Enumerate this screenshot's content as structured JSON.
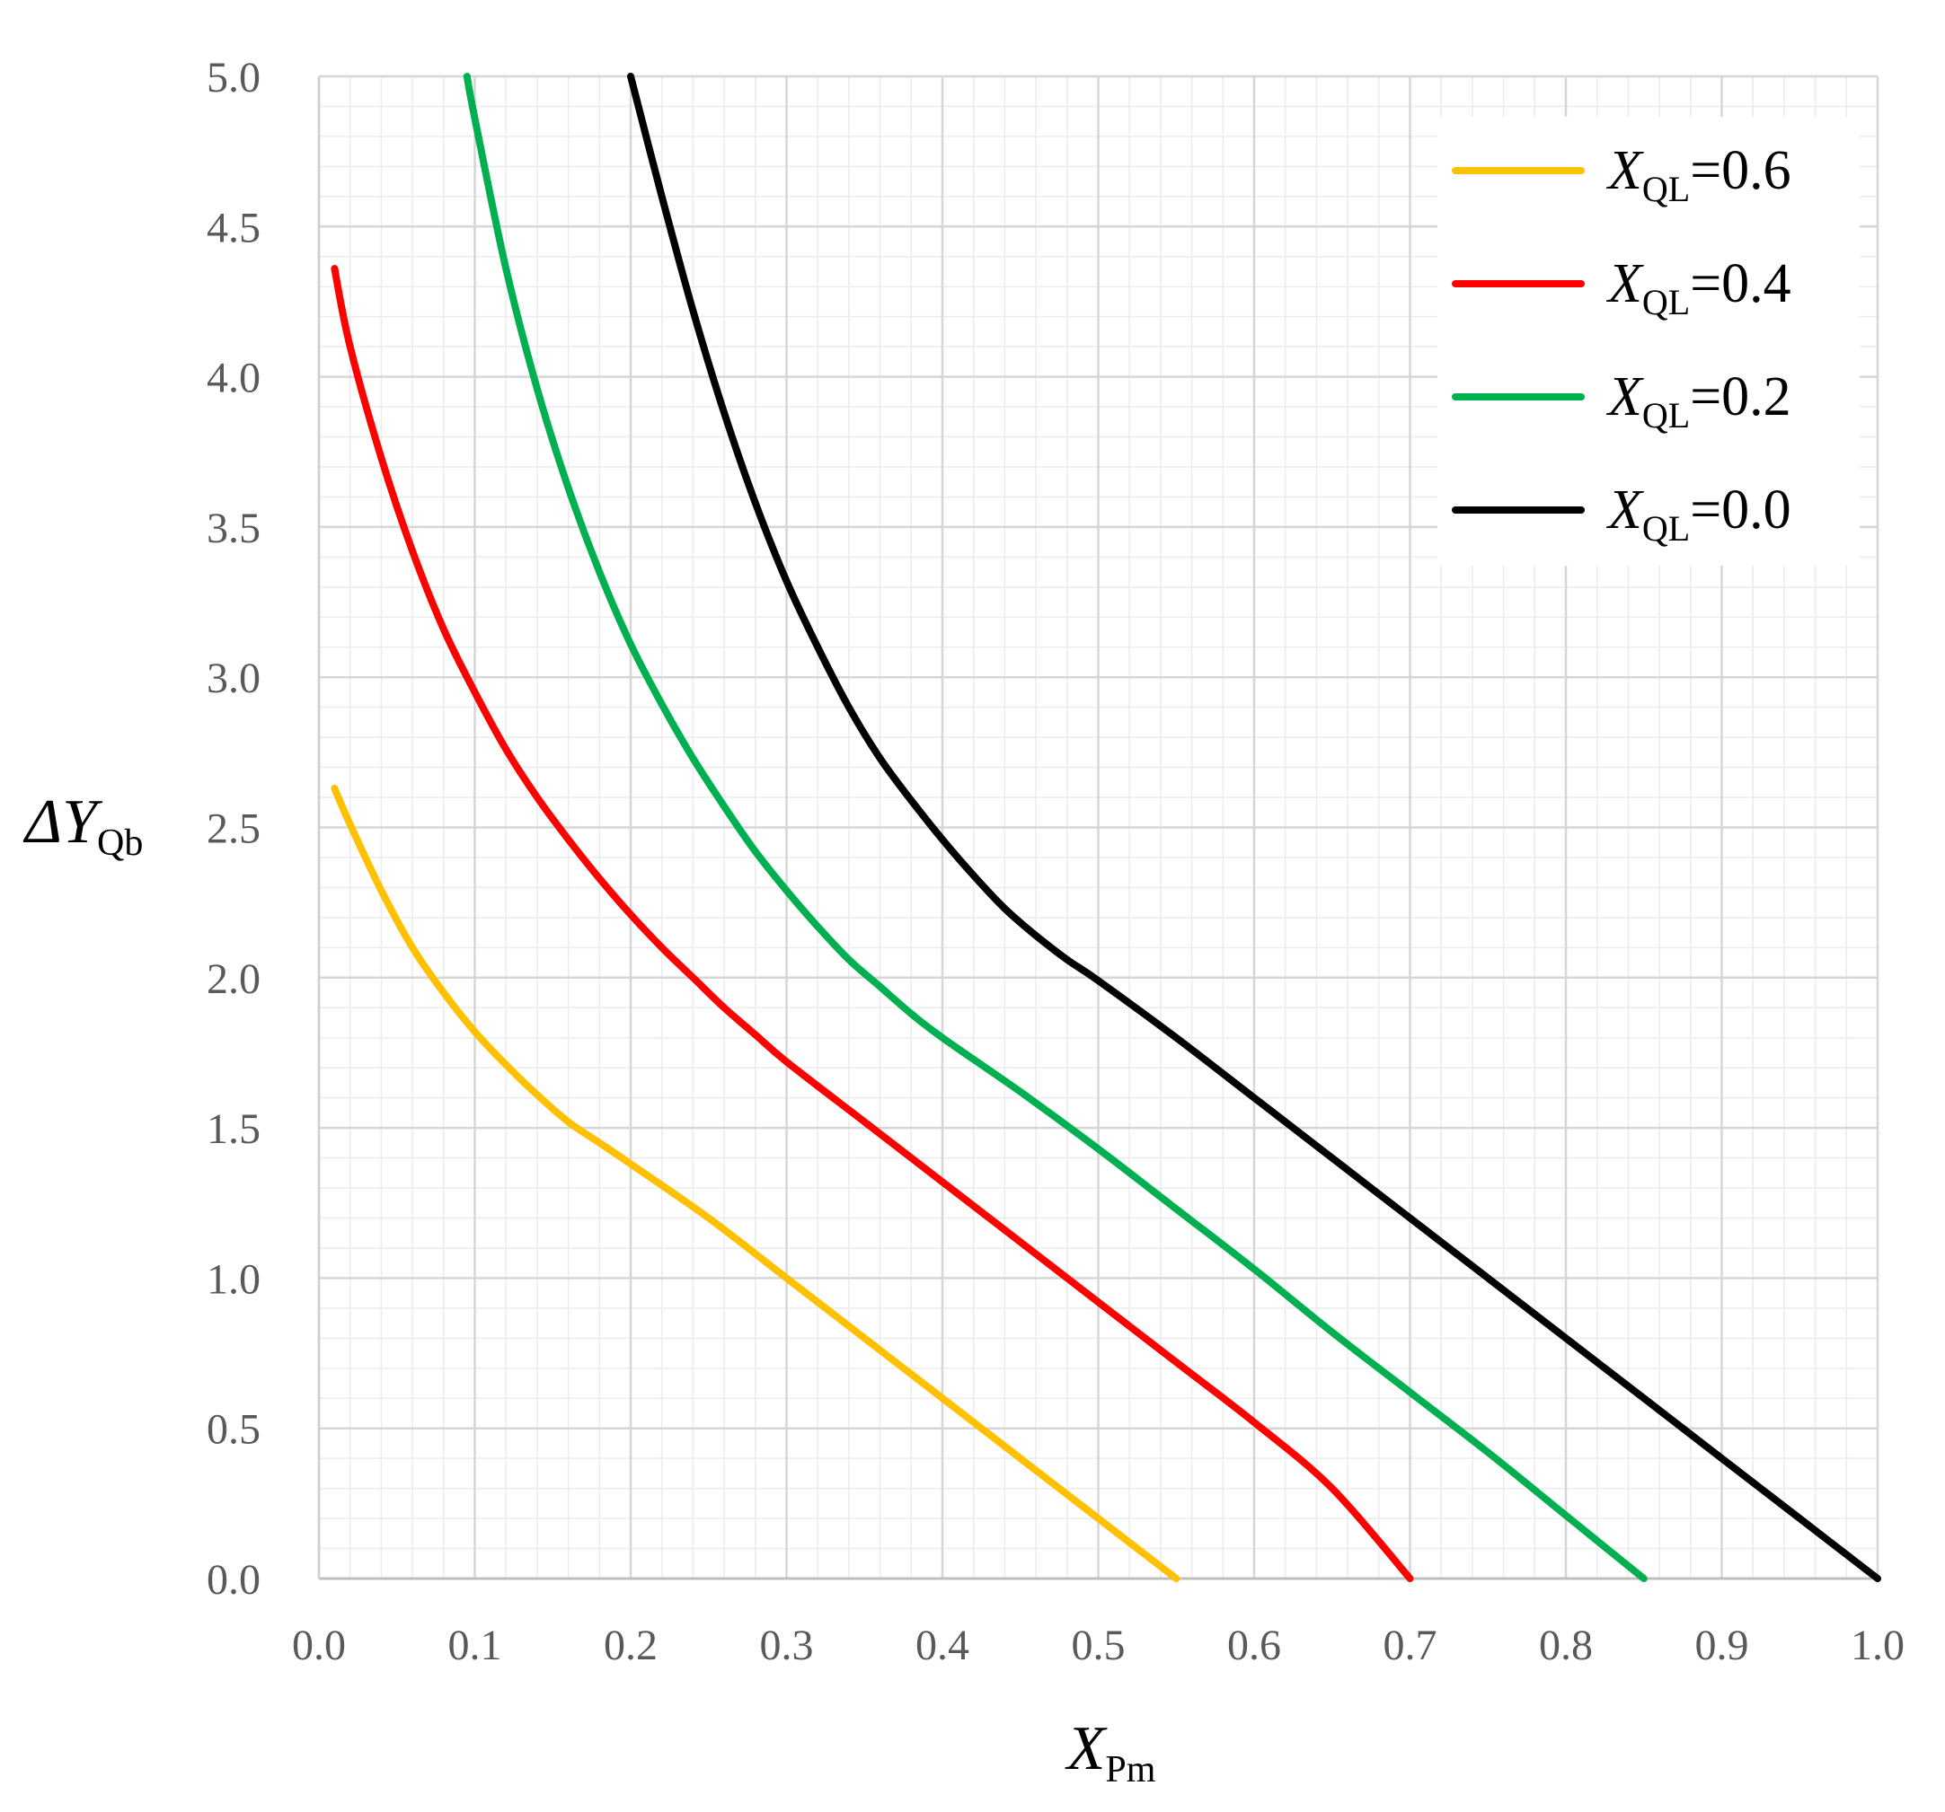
{
  "chart_data": {
    "type": "line",
    "xlabel": {
      "main": "X",
      "sub": "Pm"
    },
    "ylabel": {
      "prefix": "ΔY",
      "sub": "Qb"
    },
    "xlim": [
      0.0,
      1.0
    ],
    "ylim": [
      0.0,
      5.0
    ],
    "xticks": [
      "0.0",
      "0.1",
      "0.2",
      "0.3",
      "0.4",
      "0.5",
      "0.6",
      "0.7",
      "0.8",
      "0.9",
      "1.0"
    ],
    "yticks": [
      "0.0",
      "0.5",
      "1.0",
      "1.5",
      "2.0",
      "2.5",
      "3.0",
      "3.5",
      "4.0",
      "4.5",
      "5.0"
    ],
    "grid": {
      "major": true,
      "minor": true,
      "minor_x_step": 0.02,
      "minor_y_step": 0.1
    },
    "legend": {
      "position": "top-right",
      "var": "X",
      "sub": "QL"
    },
    "series": [
      {
        "name": "=0.6",
        "color": "#ffc000",
        "points": [
          [
            0.01,
            2.63
          ],
          [
            0.02,
            2.51
          ],
          [
            0.04,
            2.29
          ],
          [
            0.06,
            2.1
          ],
          [
            0.08,
            1.95
          ],
          [
            0.1,
            1.82
          ],
          [
            0.12,
            1.71
          ],
          [
            0.14,
            1.61
          ],
          [
            0.16,
            1.52
          ],
          [
            0.18,
            1.45
          ],
          [
            0.2,
            1.38
          ],
          [
            0.25,
            1.2
          ],
          [
            0.3,
            1.0
          ],
          [
            0.35,
            0.8
          ],
          [
            0.4,
            0.6
          ],
          [
            0.45,
            0.4
          ],
          [
            0.5,
            0.2
          ],
          [
            0.55,
            0.0
          ]
        ]
      },
      {
        "name": "=0.4",
        "color": "#ff0000",
        "points": [
          [
            0.01,
            4.36
          ],
          [
            0.02,
            4.1
          ],
          [
            0.04,
            3.73
          ],
          [
            0.06,
            3.42
          ],
          [
            0.08,
            3.16
          ],
          [
            0.1,
            2.95
          ],
          [
            0.12,
            2.76
          ],
          [
            0.14,
            2.6
          ],
          [
            0.16,
            2.46
          ],
          [
            0.18,
            2.33
          ],
          [
            0.2,
            2.21
          ],
          [
            0.22,
            2.1
          ],
          [
            0.24,
            2.0
          ],
          [
            0.26,
            1.9
          ],
          [
            0.28,
            1.81
          ],
          [
            0.3,
            1.72
          ],
          [
            0.35,
            1.52
          ],
          [
            0.4,
            1.32
          ],
          [
            0.45,
            1.12
          ],
          [
            0.5,
            0.92
          ],
          [
            0.55,
            0.72
          ],
          [
            0.6,
            0.52
          ],
          [
            0.65,
            0.3
          ],
          [
            0.7,
            0.0
          ]
        ]
      },
      {
        "name": "=0.2",
        "color": "#00b050",
        "points": [
          [
            0.095,
            5.0
          ],
          [
            0.1,
            4.86
          ],
          [
            0.12,
            4.36
          ],
          [
            0.14,
            3.96
          ],
          [
            0.16,
            3.63
          ],
          [
            0.18,
            3.35
          ],
          [
            0.2,
            3.11
          ],
          [
            0.22,
            2.91
          ],
          [
            0.24,
            2.73
          ],
          [
            0.26,
            2.57
          ],
          [
            0.28,
            2.42
          ],
          [
            0.3,
            2.29
          ],
          [
            0.32,
            2.17
          ],
          [
            0.34,
            2.06
          ],
          [
            0.36,
            1.97
          ],
          [
            0.38,
            1.88
          ],
          [
            0.4,
            1.8
          ],
          [
            0.45,
            1.62
          ],
          [
            0.5,
            1.43
          ],
          [
            0.55,
            1.23
          ],
          [
            0.6,
            1.03
          ],
          [
            0.65,
            0.82
          ],
          [
            0.7,
            0.62
          ],
          [
            0.75,
            0.42
          ],
          [
            0.8,
            0.21
          ],
          [
            0.85,
            0.0
          ]
        ]
      },
      {
        "name": "=0.0",
        "color": "#000000",
        "points": [
          [
            0.2,
            5.0
          ],
          [
            0.22,
            4.6
          ],
          [
            0.24,
            4.22
          ],
          [
            0.26,
            3.88
          ],
          [
            0.28,
            3.58
          ],
          [
            0.3,
            3.32
          ],
          [
            0.32,
            3.1
          ],
          [
            0.34,
            2.9
          ],
          [
            0.36,
            2.73
          ],
          [
            0.38,
            2.59
          ],
          [
            0.4,
            2.46
          ],
          [
            0.42,
            2.34
          ],
          [
            0.44,
            2.23
          ],
          [
            0.46,
            2.14
          ],
          [
            0.48,
            2.06
          ],
          [
            0.5,
            1.99
          ],
          [
            0.55,
            1.8
          ],
          [
            0.6,
            1.6
          ],
          [
            0.65,
            1.4
          ],
          [
            0.7,
            1.2
          ],
          [
            0.75,
            1.0
          ],
          [
            0.8,
            0.8
          ],
          [
            0.85,
            0.6
          ],
          [
            0.9,
            0.4
          ],
          [
            0.95,
            0.2
          ],
          [
            1.0,
            0.0
          ]
        ]
      }
    ]
  }
}
